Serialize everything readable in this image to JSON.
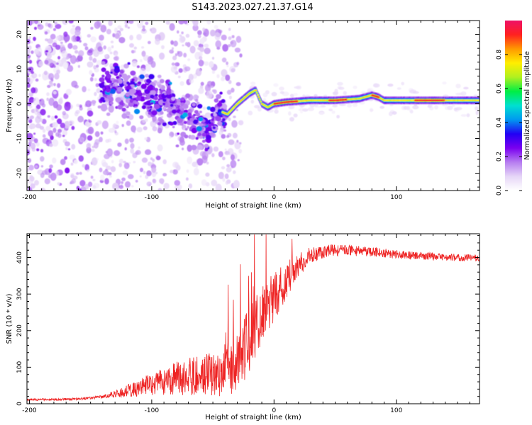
{
  "title": "S143.2023.027.21.37.G14",
  "colors": {
    "axis": "#000000",
    "snr_line": "#ee2222",
    "colormap": [
      "#ffffff",
      "#e6d6f7",
      "#b67cf0",
      "#7a00f0",
      "#2200f4",
      "#0099f0",
      "#00e0d0",
      "#00ee44",
      "#b0f020",
      "#ffee00",
      "#ff9900",
      "#ff2020",
      "#ee1166"
    ]
  },
  "chart_data": [
    {
      "type": "heatmap",
      "name": "spectrogram",
      "xlabel": "Height of straight line (km)",
      "ylabel": "Frequency (Hz)",
      "xlim": [
        -202,
        168
      ],
      "ylim": [
        -25,
        24
      ],
      "xticks": [
        -200,
        -100,
        0,
        100
      ],
      "yticks": [
        -20,
        -10,
        0,
        10,
        20
      ],
      "ridge": {
        "x": [
          -140,
          -125,
          -110,
          -95,
          -80,
          -65,
          -55,
          -45,
          -38,
          -30,
          -20,
          -15,
          -10,
          -5,
          0,
          10,
          30,
          50,
          70,
          80,
          85,
          90,
          100,
          120,
          168
        ],
        "y": [
          5,
          4,
          3,
          1,
          -2,
          -5,
          -8,
          -2,
          -3,
          0,
          3,
          4,
          0,
          -1,
          0,
          0.5,
          1,
          1,
          1.5,
          2.5,
          2,
          1,
          1,
          1,
          1
        ]
      },
      "colorbar": {
        "label": "Normalized spectral amplitude",
        "range": [
          0.0,
          1.0
        ],
        "ticks": [
          "0.0",
          "0.2",
          "0.4",
          "0.6",
          "0.8"
        ]
      }
    },
    {
      "type": "line",
      "name": "snr",
      "xlabel": "Height of straight line (km)",
      "ylabel": "SNR (10 * v/v)",
      "xlim": [
        -202,
        168
      ],
      "ylim": [
        0,
        465
      ],
      "xticks": [
        -200,
        -100,
        0,
        100
      ],
      "yticks": [
        0,
        100,
        200,
        300,
        400
      ],
      "trend": {
        "x": [
          -202,
          -160,
          -140,
          -120,
          -100,
          -80,
          -60,
          -40,
          -30,
          -20,
          -10,
          0,
          10,
          20,
          30,
          45,
          60,
          80,
          100,
          130,
          168
        ],
        "y": [
          10,
          12,
          18,
          30,
          45,
          55,
          60,
          70,
          90,
          150,
          220,
          270,
          320,
          370,
          400,
          415,
          415,
          412,
          405,
          400,
          395
        ]
      },
      "noise": {
        "x": [
          -202,
          -140,
          -120,
          -80,
          -40,
          -20,
          0,
          20,
          40,
          100,
          168
        ],
        "amplitude": [
          4,
          6,
          25,
          70,
          110,
          140,
          110,
          50,
          25,
          18,
          14
        ]
      }
    }
  ]
}
